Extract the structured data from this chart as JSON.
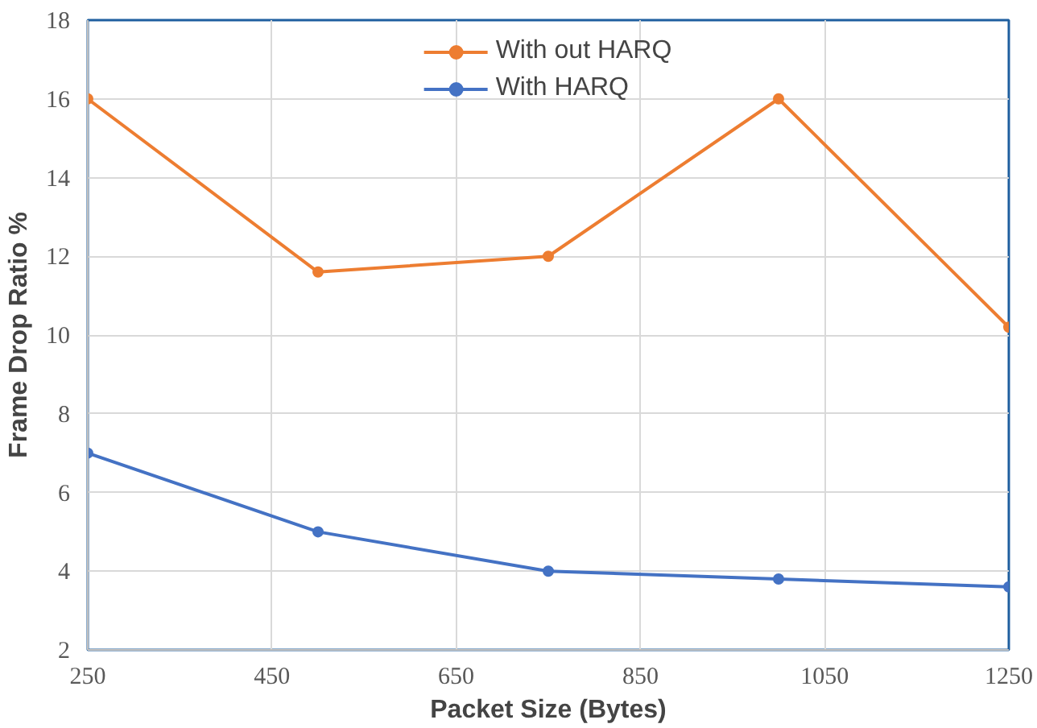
{
  "chart_data": {
    "type": "line",
    "xlabel": "Packet Size (Bytes)",
    "ylabel": "Frame Drop Ratio %",
    "x": [
      250,
      500,
      750,
      1000,
      1250
    ],
    "series": [
      {
        "name": "With out HARQ",
        "color": "#ed7d31",
        "values": [
          16,
          11.6,
          12,
          16,
          10.2
        ]
      },
      {
        "name": "With HARQ",
        "color": "#4472c4",
        "values": [
          7,
          5,
          4,
          3.8,
          3.6
        ]
      }
    ],
    "xlim": [
      250,
      1250
    ],
    "xticks": [
      250,
      450,
      650,
      850,
      1050,
      1250
    ],
    "ylim": [
      2,
      18
    ],
    "yticks": [
      2,
      4,
      6,
      8,
      10,
      12,
      14,
      16,
      18
    ],
    "grid": true,
    "legend": "top",
    "marker": "circle",
    "line_style": "solid"
  }
}
